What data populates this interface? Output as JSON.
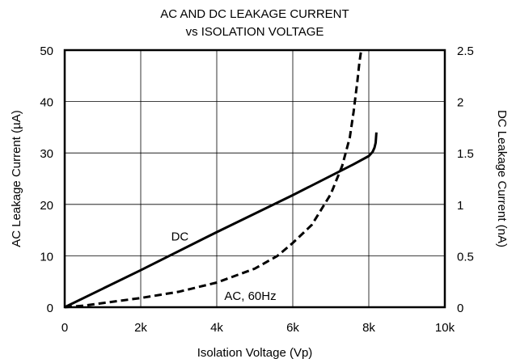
{
  "chart_data": {
    "type": "line",
    "title": [
      "AC AND DC LEAKAGE CURRENT",
      "vs ISOLATION VOLTAGE"
    ],
    "xlabel": "Isolation Voltage (Vp)",
    "ylabel": "AC Leakage Current (µA)",
    "y2label": "DC Leakage Current (nA)",
    "xlim": [
      0,
      10000
    ],
    "ylim": [
      0,
      50
    ],
    "y2lim": [
      0,
      2.5
    ],
    "grid": true,
    "x_ticks": [
      {
        "value": 0,
        "label": "0"
      },
      {
        "value": 2000,
        "label": "2k"
      },
      {
        "value": 4000,
        "label": "4k"
      },
      {
        "value": 6000,
        "label": "6k"
      },
      {
        "value": 8000,
        "label": "8k"
      },
      {
        "value": 10000,
        "label": "10k"
      }
    ],
    "y_ticks": [
      {
        "value": 0,
        "label": "0"
      },
      {
        "value": 10,
        "label": "10"
      },
      {
        "value": 20,
        "label": "20"
      },
      {
        "value": 30,
        "label": "30"
      },
      {
        "value": 40,
        "label": "40"
      },
      {
        "value": 50,
        "label": "50"
      }
    ],
    "y2_ticks": [
      {
        "value": 0,
        "label": "0"
      },
      {
        "value": 0.5,
        "label": "0.5"
      },
      {
        "value": 1,
        "label": "1"
      },
      {
        "value": 1.5,
        "label": "1.5"
      },
      {
        "value": 2,
        "label": "2"
      },
      {
        "value": 2.5,
        "label": "2.5"
      }
    ],
    "series": [
      {
        "name": "DC",
        "axis": "right",
        "style": "solid",
        "x": [
          0,
          2000,
          4000,
          6000,
          7600,
          8000,
          8100,
          8150,
          8180,
          8200
        ],
        "y": [
          0,
          0.36,
          0.73,
          1.09,
          1.39,
          1.47,
          1.51,
          1.55,
          1.6,
          1.7
        ]
      },
      {
        "name": "AC, 60Hz",
        "axis": "left",
        "style": "dashed",
        "x": [
          0,
          500,
          1000,
          2000,
          3000,
          4000,
          5000,
          5600,
          6000,
          6500,
          7000,
          7300,
          7500,
          7600,
          7700,
          7750,
          7800
        ],
        "y": [
          0,
          0.3,
          0.8,
          1.8,
          3.0,
          4.8,
          7.5,
          10,
          12.5,
          16,
          22,
          27.5,
          33,
          38,
          44,
          47.5,
          50
        ]
      }
    ],
    "annotations": [
      {
        "text": "DC",
        "x": 2800,
        "y": 13
      },
      {
        "text": "AC, 60Hz",
        "x": 4200,
        "y": 1.4
      }
    ]
  }
}
